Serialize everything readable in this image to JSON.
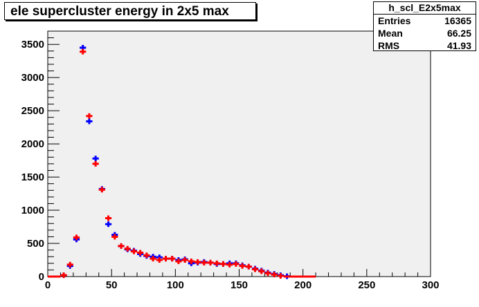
{
  "title": "ele supercluster energy in 2x5 max",
  "stats": {
    "name": "h_scl_E2x5max",
    "rows": [
      {
        "label": "Entries",
        "value": "16365"
      },
      {
        "label": "Mean",
        "value": "66.25"
      },
      {
        "label": "RMS",
        "value": "41.93"
      }
    ]
  },
  "chart_data": {
    "type": "scatter",
    "xlim": [
      0,
      300
    ],
    "ylim": [
      0,
      3700
    ],
    "xticks": [
      0,
      50,
      100,
      150,
      200,
      250,
      300
    ],
    "yticks": [
      0,
      500,
      1000,
      1500,
      2000,
      2500,
      3000,
      3500
    ],
    "bin_width": 5,
    "grid": false,
    "background_color": "#f0f0f0",
    "series": [
      {
        "color": "#0000ff",
        "x": [
          2.5,
          7.5,
          12.5,
          17.5,
          22.5,
          27.5,
          32.5,
          37.5,
          42.5,
          47.5,
          52.5,
          57.5,
          62.5,
          67.5,
          72.5,
          77.5,
          82.5,
          87.5,
          92.5,
          97.5,
          102.5,
          107.5,
          112.5,
          117.5,
          122.5,
          127.5,
          132.5,
          137.5,
          142.5,
          147.5,
          152.5,
          157.5,
          162.5,
          167.5,
          172.5,
          177.5,
          182.5,
          187.5,
          192.5,
          197.5,
          202.5,
          207.5
        ],
        "y": [
          0,
          0,
          20,
          160,
          560,
          3450,
          2340,
          1780,
          1320,
          790,
          630,
          460,
          410,
          390,
          340,
          310,
          300,
          290,
          270,
          270,
          250,
          260,
          200,
          210,
          220,
          210,
          190,
          190,
          200,
          200,
          170,
          150,
          120,
          90,
          60,
          40,
          20,
          5,
          0,
          0,
          0,
          0
        ]
      },
      {
        "color": "#ff0000",
        "x": [
          2.5,
          7.5,
          12.5,
          17.5,
          22.5,
          27.5,
          32.5,
          37.5,
          42.5,
          47.5,
          52.5,
          57.5,
          62.5,
          67.5,
          72.5,
          77.5,
          82.5,
          87.5,
          92.5,
          97.5,
          102.5,
          107.5,
          112.5,
          117.5,
          122.5,
          127.5,
          132.5,
          137.5,
          142.5,
          147.5,
          152.5,
          157.5,
          162.5,
          167.5,
          172.5,
          177.5,
          182.5,
          187.5,
          192.5,
          197.5,
          202.5,
          207.5
        ],
        "y": [
          0,
          0,
          20,
          180,
          590,
          3390,
          2420,
          1700,
          1310,
          880,
          600,
          460,
          420,
          380,
          360,
          320,
          270,
          250,
          270,
          270,
          230,
          250,
          230,
          220,
          210,
          210,
          200,
          190,
          180,
          190,
          160,
          150,
          110,
          80,
          50,
          30,
          10,
          0,
          0,
          0,
          0,
          0
        ]
      }
    ]
  }
}
